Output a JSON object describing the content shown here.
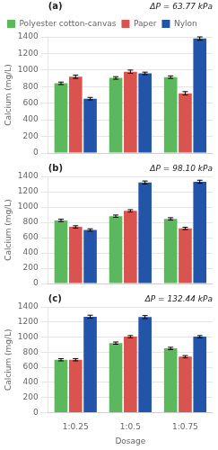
{
  "chart_data": [
    {
      "type": "bar",
      "annotations": [
        "(a)",
        "ΔP = 63.77 kPa"
      ],
      "y_label": "Calcium (mg/L)",
      "categories": [
        "1:0.25",
        "1:0.5",
        "1:0.75"
      ],
      "series": [
        {
          "name": "Polyester cotton-canvas",
          "color": "#5cb85c",
          "values": [
            840,
            905,
            915
          ],
          "errors": [
            15,
            15,
            15
          ]
        },
        {
          "name": "Paper",
          "color": "#d9534f",
          "values": [
            920,
            980,
            720
          ],
          "errors": [
            20,
            20,
            20
          ]
        },
        {
          "name": "Nylon",
          "color": "#2255aa",
          "values": [
            655,
            960,
            1380
          ],
          "errors": [
            15,
            15,
            20
          ]
        }
      ],
      "ylim": [
        0,
        1400
      ],
      "yticks": [
        0,
        200,
        400,
        600,
        800,
        1000,
        1200,
        1400
      ],
      "grid": true,
      "legend": "upper left",
      "tick_labels": "y"
    },
    {
      "type": "bar",
      "annotations": [
        "(b)",
        "ΔP = 98.10 kPa"
      ],
      "y_label": "Calcium (mg/L)",
      "categories": [
        "1:0.25",
        "1:0.5",
        "1:0.75"
      ],
      "series": [
        {
          "name": "Polyester cotton-canvas",
          "color": "#5cb85c",
          "values": [
            825,
            880,
            845
          ],
          "errors": [
            15,
            15,
            15
          ]
        },
        {
          "name": "Paper",
          "color": "#d9534f",
          "values": [
            740,
            950,
            720
          ],
          "errors": [
            15,
            15,
            15
          ]
        },
        {
          "name": "Nylon",
          "color": "#2255aa",
          "values": [
            700,
            1320,
            1330
          ],
          "errors": [
            15,
            20,
            20
          ]
        }
      ],
      "ylim": [
        0,
        1400
      ],
      "yticks": [
        0,
        200,
        400,
        600,
        800,
        1000,
        1200,
        1400
      ],
      "grid": true,
      "tick_labels": "y"
    },
    {
      "type": "bar",
      "annotations": [
        "(c)",
        "ΔP = 132.44 kPa"
      ],
      "x_label": "Dosage",
      "y_label": "Calcium (mg/L)",
      "categories": [
        "1:0.25",
        "1:0.5",
        "1:0.75"
      ],
      "series": [
        {
          "name": "Polyester cotton-canvas",
          "color": "#5cb85c",
          "values": [
            700,
            920,
            850
          ],
          "errors": [
            15,
            15,
            15
          ]
        },
        {
          "name": "Paper",
          "color": "#d9534f",
          "values": [
            700,
            1005,
            740
          ],
          "errors": [
            15,
            15,
            15
          ]
        },
        {
          "name": "Nylon",
          "color": "#2255aa",
          "values": [
            1270,
            1265,
            1005
          ],
          "errors": [
            20,
            20,
            15
          ]
        }
      ],
      "ylim": [
        0,
        1400
      ],
      "yticks": [
        0,
        200,
        400,
        600,
        800,
        1000,
        1200,
        1400
      ],
      "grid": true
    }
  ]
}
